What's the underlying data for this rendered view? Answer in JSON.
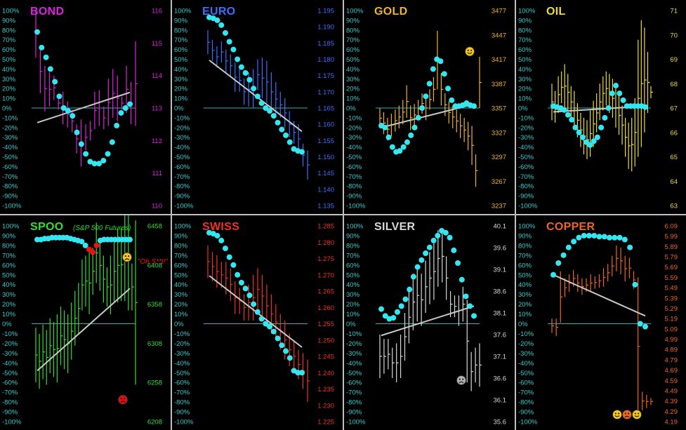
{
  "pct_ticks": [
    "100%",
    "90%",
    "80%",
    "70%",
    "60%",
    "50%",
    "40%",
    "30%",
    "20%",
    "10%",
    "0%",
    "-10%",
    "-20%",
    "-30%",
    "-40%",
    "-50%",
    "-60%",
    "-70%",
    "-80%",
    "-90%",
    "-100%"
  ],
  "colors": {
    "background": "#000000",
    "pct_axis": "#33cccc",
    "dots": "#33e6f0",
    "zero_line": "#2ab5b5",
    "trend_line": "#c8c8c8",
    "red_dots": "#ee1111"
  },
  "chart_data": [
    {
      "id": "bond",
      "title": "BOND",
      "subtitle": "",
      "color": "#dd22dd",
      "type": "line",
      "price_ticks": [
        "116",
        "115",
        "114",
        "113",
        "112",
        "111",
        "110"
      ],
      "price_range": [
        110,
        116
      ],
      "bars": [
        [
          114.55,
          116.0
        ],
        [
          113.45,
          114.8
        ],
        [
          112.9,
          114.3
        ],
        [
          113.05,
          114.1
        ],
        [
          113.25,
          114.0
        ],
        [
          112.95,
          113.35
        ],
        [
          112.5,
          113.5
        ],
        [
          112.4,
          113.2
        ],
        [
          112.25,
          112.95
        ],
        [
          111.6,
          112.5
        ],
        [
          111.2,
          112.65
        ],
        [
          111.7,
          112.5
        ],
        [
          112.0,
          112.6
        ],
        [
          112.35,
          113.5
        ],
        [
          112.45,
          113.55
        ],
        [
          112.35,
          113.05
        ],
        [
          112.45,
          113.9
        ],
        [
          112.7,
          114.2
        ],
        [
          112.6,
          114.0
        ],
        [
          112.95,
          113.35
        ],
        [
          112.85,
          114.3
        ],
        [
          112.5,
          113.8
        ],
        [
          112.45,
          115.05
        ]
      ],
      "osc": [
        78,
        62,
        52,
        40,
        27,
        12,
        0,
        -3,
        -8,
        -25,
        -37,
        -47,
        -55,
        -57,
        -57,
        -54,
        -47,
        -35,
        -18,
        -5,
        0,
        4
      ],
      "trend_pct": [
        -15,
        16
      ]
    },
    {
      "id": "euro",
      "title": "EURO",
      "subtitle": "",
      "color": "#3d6fff",
      "type": "line",
      "price_ticks": [
        "1.195",
        "1.190",
        "1.185",
        "1.180",
        "1.175",
        "1.170",
        "1.165",
        "1.160",
        "1.155",
        "1.150",
        "1.145",
        "1.140",
        "1.135"
      ],
      "price_range": [
        1.135,
        1.195
      ],
      "bars": [
        [
          1.1815,
          1.189
        ],
        [
          1.1795,
          1.186
        ],
        [
          1.1775,
          1.184
        ],
        [
          1.179,
          1.1855
        ],
        [
          1.176,
          1.183
        ],
        [
          1.1745,
          1.1815
        ],
        [
          1.17,
          1.179
        ],
        [
          1.17,
          1.177
        ],
        [
          1.166,
          1.174
        ],
        [
          1.1655,
          1.176
        ],
        [
          1.165,
          1.177
        ],
        [
          1.1705,
          1.18
        ],
        [
          1.168,
          1.1805
        ],
        [
          1.1665,
          1.1795
        ],
        [
          1.164,
          1.176
        ],
        [
          1.1625,
          1.173
        ],
        [
          1.162,
          1.17
        ],
        [
          1.159,
          1.168
        ],
        [
          1.156,
          1.164
        ],
        [
          1.154,
          1.161
        ],
        [
          1.151,
          1.16
        ],
        [
          1.147,
          1.154
        ],
        [
          1.143,
          1.152
        ]
      ],
      "osc": [
        93,
        92,
        90,
        85,
        77,
        68,
        60,
        50,
        42,
        36,
        29,
        20,
        12,
        5,
        0,
        -3,
        -8,
        -15,
        -22,
        -28,
        -35,
        -42,
        -44,
        -45
      ],
      "trend_pct": [
        49,
        -24
      ]
    },
    {
      "id": "gold",
      "title": "GOLD",
      "subtitle": "",
      "color": "#f0b428",
      "type": "line",
      "price_ticks": [
        "3477",
        "3447",
        "3417",
        "3387",
        "3357",
        "3327",
        "3297",
        "3267",
        "3237"
      ],
      "price_range": [
        3237,
        3477
      ],
      "bars": [
        [
          3332,
          3357
        ],
        [
          3325,
          3352
        ],
        [
          3317,
          3345
        ],
        [
          3322,
          3350
        ],
        [
          3328,
          3355
        ],
        [
          3332,
          3360
        ],
        [
          3337,
          3367
        ],
        [
          3345,
          3385
        ],
        [
          3330,
          3360
        ],
        [
          3335,
          3362
        ],
        [
          3345,
          3367
        ],
        [
          3350,
          3375
        ],
        [
          3342,
          3372
        ],
        [
          3355,
          3380
        ],
        [
          3365,
          3395
        ],
        [
          3380,
          3452
        ],
        [
          3360,
          3400
        ],
        [
          3347,
          3375
        ],
        [
          3338,
          3365
        ],
        [
          3332,
          3360
        ],
        [
          3327,
          3355
        ],
        [
          3320,
          3350
        ],
        [
          3315,
          3345
        ],
        [
          3305,
          3340
        ],
        [
          3287,
          3335
        ],
        [
          3260,
          3300
        ],
        [
          3357,
          3420
        ]
      ],
      "osc": [
        -18,
        -20,
        -30,
        -40,
        -45,
        -44,
        -40,
        -35,
        -28,
        -20,
        -10,
        0,
        12,
        25,
        40,
        50,
        48,
        35,
        20,
        8,
        2,
        2,
        3,
        5,
        3,
        2
      ],
      "trend_pct": [
        -20,
        4
      ],
      "smiley": {
        "price_pct": 58
      }
    },
    {
      "id": "oil",
      "title": "OIL",
      "subtitle": "",
      "color": "#eedd33",
      "type": "line",
      "price_ticks": [
        "71",
        "70",
        "69",
        "68",
        "67",
        "66",
        "65",
        "64",
        "63"
      ],
      "price_range": [
        63,
        71
      ],
      "bars": [
        [
          66.5,
          68.0
        ],
        [
          66.4,
          67.7
        ],
        [
          66.8,
          68.3
        ],
        [
          67.2,
          68.5
        ],
        [
          67.0,
          68.8
        ],
        [
          66.9,
          68.4
        ],
        [
          66.6,
          67.9
        ],
        [
          66.3,
          67.7
        ],
        [
          65.8,
          67.2
        ],
        [
          65.4,
          66.8
        ],
        [
          65.1,
          66.6
        ],
        [
          64.9,
          66.5
        ],
        [
          65.0,
          66.9
        ],
        [
          65.4,
          67.3
        ],
        [
          66.0,
          67.6
        ],
        [
          66.5,
          68.0
        ],
        [
          66.9,
          68.3
        ],
        [
          67.1,
          68.5
        ],
        [
          66.8,
          68.4
        ],
        [
          66.6,
          68.2
        ],
        [
          66.2,
          67.8
        ],
        [
          65.9,
          67.5
        ],
        [
          65.5,
          67.1
        ],
        [
          65.0,
          66.6
        ],
        [
          64.5,
          66.4
        ],
        [
          64.4,
          66.6
        ],
        [
          64.6,
          67.4
        ],
        [
          65.0,
          69.8
        ],
        [
          65.4,
          70.6
        ],
        [
          66.0,
          70.3
        ],
        [
          66.8,
          69.3
        ],
        [
          67.4,
          67.9
        ]
      ],
      "osc": [
        2,
        1,
        0,
        -2,
        -7,
        -12,
        -20,
        -25,
        -30,
        -35,
        -38,
        -34,
        -30,
        -20,
        -10,
        0,
        15,
        23,
        15,
        8,
        2,
        2,
        2,
        2,
        2,
        1
      ],
      "trend_pct": [
        -4,
        2
      ]
    },
    {
      "id": "spoo",
      "title": "SPOO",
      "subtitle": "(S&P 500 Futures)",
      "color": "#33dd33",
      "type": "line",
      "annotation": "\"Oh S**t!\"",
      "price_ticks": [
        "6458",
        "6408",
        "6358",
        "6308",
        "6258",
        "6208"
      ],
      "price_range": [
        6208,
        6458
      ],
      "bars": [
        [
          6258,
          6328
        ],
        [
          6250,
          6320
        ],
        [
          6262,
          6332
        ],
        [
          6255,
          6325
        ],
        [
          6270,
          6340
        ],
        [
          6265,
          6335
        ],
        [
          6258,
          6345
        ],
        [
          6280,
          6355
        ],
        [
          6275,
          6350
        ],
        [
          6270,
          6345
        ],
        [
          6287,
          6360
        ],
        [
          6305,
          6375
        ],
        [
          6320,
          6385
        ],
        [
          6350,
          6415
        ],
        [
          6355,
          6420
        ],
        [
          6345,
          6425
        ],
        [
          6370,
          6430
        ],
        [
          6385,
          6462
        ],
        [
          6375,
          6440
        ],
        [
          6360,
          6420
        ],
        [
          6355,
          6405
        ],
        [
          6345,
          6420
        ],
        [
          6360,
          6440
        ],
        [
          6360,
          6455
        ],
        [
          6362,
          6455
        ],
        [
          6362,
          6472
        ],
        [
          6350,
          6490
        ],
        [
          6350,
          6410
        ],
        [
          6255,
          6465
        ]
      ],
      "osc": [
        86,
        86,
        87,
        87,
        88,
        88,
        88,
        88,
        88,
        87,
        86,
        85,
        84,
        80,
        76,
        73,
        80,
        85,
        86,
        86,
        86,
        86,
        86,
        86,
        86,
        86
      ],
      "red_dot_indices": [
        14,
        15,
        16
      ],
      "trend_pct": [
        -48,
        36
      ],
      "face_high_price": 6418,
      "face_low_price": 6236
    },
    {
      "id": "swiss",
      "title": "SWISS",
      "subtitle": "",
      "color": "#ee3322",
      "type": "line",
      "price_ticks": [
        "1.285",
        "1.280",
        "1.275",
        "1.270",
        "1.265",
        "1.260",
        "1.255",
        "1.250",
        "1.245",
        "1.240",
        "1.235",
        "1.230",
        "1.225"
      ],
      "price_range": [
        1.225,
        1.285
      ],
      "bars": [
        [
          1.269,
          1.279
        ],
        [
          1.268,
          1.277
        ],
        [
          1.266,
          1.276
        ],
        [
          1.266,
          1.274
        ],
        [
          1.264,
          1.274
        ],
        [
          1.262,
          1.272
        ],
        [
          1.258,
          1.268
        ],
        [
          1.258,
          1.266
        ],
        [
          1.256,
          1.264
        ],
        [
          1.256,
          1.267
        ],
        [
          1.256,
          1.27
        ],
        [
          1.259,
          1.272
        ],
        [
          1.257,
          1.27
        ],
        [
          1.254,
          1.267
        ],
        [
          1.252,
          1.264
        ],
        [
          1.25,
          1.261
        ],
        [
          1.247,
          1.258
        ],
        [
          1.244,
          1.256
        ],
        [
          1.242,
          1.252
        ],
        [
          1.24,
          1.25
        ],
        [
          1.238,
          1.247
        ],
        [
          1.235,
          1.246
        ],
        [
          1.231,
          1.244
        ]
      ],
      "osc": [
        93,
        92,
        90,
        85,
        77,
        68,
        60,
        50,
        42,
        36,
        29,
        20,
        12,
        5,
        0,
        -3,
        -8,
        -15,
        -22,
        -28,
        -35,
        -48,
        -50,
        -50
      ],
      "trend_pct": [
        49,
        -24
      ]
    },
    {
      "id": "silver",
      "title": "SILVER",
      "subtitle": "",
      "color": "#d8d8d8",
      "type": "line",
      "price_ticks": [
        "40.1",
        "39.6",
        "39.1",
        "38.6",
        "38.1",
        "37.6",
        "37.1",
        "36.6",
        "36.1",
        "35.6"
      ],
      "price_range": [
        35.6,
        40.1
      ],
      "bars": [
        [
          36.6,
          37.6
        ],
        [
          36.7,
          37.5
        ],
        [
          36.8,
          37.5
        ],
        [
          36.6,
          37.3
        ],
        [
          36.5,
          37.4
        ],
        [
          36.6,
          37.6
        ],
        [
          37.0,
          38.1
        ],
        [
          37.4,
          38.6
        ],
        [
          37.7,
          39.0
        ],
        [
          37.9,
          39.1
        ],
        [
          37.8,
          39.0
        ],
        [
          38.1,
          39.3
        ],
        [
          38.3,
          39.5
        ],
        [
          38.4,
          39.7
        ],
        [
          38.7,
          40.0
        ],
        [
          38.8,
          40.0
        ],
        [
          38.4,
          39.4
        ],
        [
          38.0,
          38.6
        ],
        [
          38.0,
          38.5
        ],
        [
          37.8,
          38.5
        ],
        [
          37.9,
          38.7
        ],
        [
          36.5,
          38.4
        ],
        [
          36.3,
          37.2
        ],
        [
          36.5,
          37.3
        ],
        [
          36.4,
          37.4
        ]
      ],
      "osc": [
        15,
        8,
        5,
        6,
        12,
        18,
        25,
        35,
        48,
        58,
        65,
        72,
        78,
        85,
        90,
        95,
        93,
        88,
        75,
        62,
        45,
        28,
        18,
        8
      ],
      "trend_pct": [
        -12,
        18
      ],
      "frown": {
        "price": 36.55
      }
    },
    {
      "id": "copper",
      "title": "COPPER",
      "subtitle": "",
      "color": "#ee6622",
      "type": "line",
      "price_ticks": [
        "6.09",
        "5.99",
        "5.89",
        "5.79",
        "5.69",
        "5.59",
        "5.49",
        "5.39",
        "5.29",
        "5.19",
        "5.09",
        "4.99",
        "4.89",
        "4.79",
        "4.69",
        "4.59",
        "4.49",
        "4.39",
        "4.29",
        "4.19"
      ],
      "price_range": [
        4.19,
        6.09
      ],
      "bars": [
        [
          5.05,
          5.19
        ],
        [
          5.02,
          5.19
        ],
        [
          5.15,
          5.65
        ],
        [
          5.4,
          5.58
        ],
        [
          5.45,
          5.62
        ],
        [
          5.5,
          5.66
        ],
        [
          5.45,
          5.62
        ],
        [
          5.42,
          5.58
        ],
        [
          5.45,
          5.58
        ],
        [
          5.45,
          5.62
        ],
        [
          5.48,
          5.6
        ],
        [
          5.49,
          5.62
        ],
        [
          5.5,
          5.68
        ],
        [
          5.55,
          5.72
        ],
        [
          5.6,
          5.8
        ],
        [
          5.65,
          5.9
        ],
        [
          5.62,
          5.88
        ],
        [
          5.55,
          5.8
        ],
        [
          5.58,
          5.78
        ],
        [
          5.48,
          5.65
        ],
        [
          4.25,
          5.59
        ],
        [
          4.3,
          4.48
        ],
        [
          4.32,
          4.45
        ],
        [
          4.35,
          4.42
        ]
      ],
      "osc": [
        50,
        62,
        70,
        78,
        84,
        88,
        90,
        90,
        90,
        89,
        89,
        88,
        88,
        88,
        86,
        78,
        40,
        0,
        -3
      ],
      "trend_pct": [
        50,
        8
      ]
    }
  ]
}
